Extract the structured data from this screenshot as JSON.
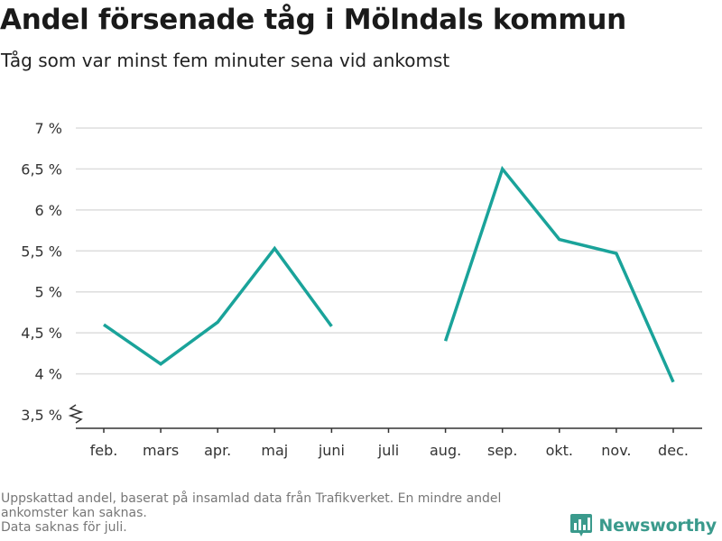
{
  "title": "Andel försenade tåg i Mölndals kommun",
  "subtitle": "Tåg som var minst fem minuter sena vid ankomst",
  "footer": {
    "line1": "Uppskattad andel, baserat på insamlad data från Trafikverket. En mindre andel",
    "line2": "ankomster kan saknas.",
    "line3": "Data saknas för juli."
  },
  "brand": {
    "name": "Newsworthy",
    "icon": "bar-chart-logo-icon"
  },
  "colors": {
    "line": "#1aa39a",
    "grid": "#dddddd",
    "axis": "#333333",
    "brand": "#3a9a8c"
  },
  "chart_data": {
    "type": "line",
    "categories": [
      "feb.",
      "mars",
      "apr.",
      "maj",
      "juni",
      "juli",
      "aug.",
      "sep.",
      "okt.",
      "nov.",
      "dec."
    ],
    "series": [
      {
        "values": [
          4.6,
          4.12,
          4.63,
          5.53,
          4.58,
          null,
          4.4,
          6.5,
          5.64,
          5.47,
          3.9
        ]
      }
    ],
    "y_ticks": [
      3.5,
      4,
      4.5,
      5,
      5.5,
      6,
      6.5,
      7
    ],
    "y_tick_labels": [
      "3,5 %",
      "4 %",
      "4,5 %",
      "5 %",
      "5,5 %",
      "6 %",
      "6,5 %",
      "7 %"
    ],
    "ylim": [
      3.5,
      7
    ],
    "y_axis_break": true,
    "grid": true,
    "xlabel": "",
    "ylabel": ""
  }
}
